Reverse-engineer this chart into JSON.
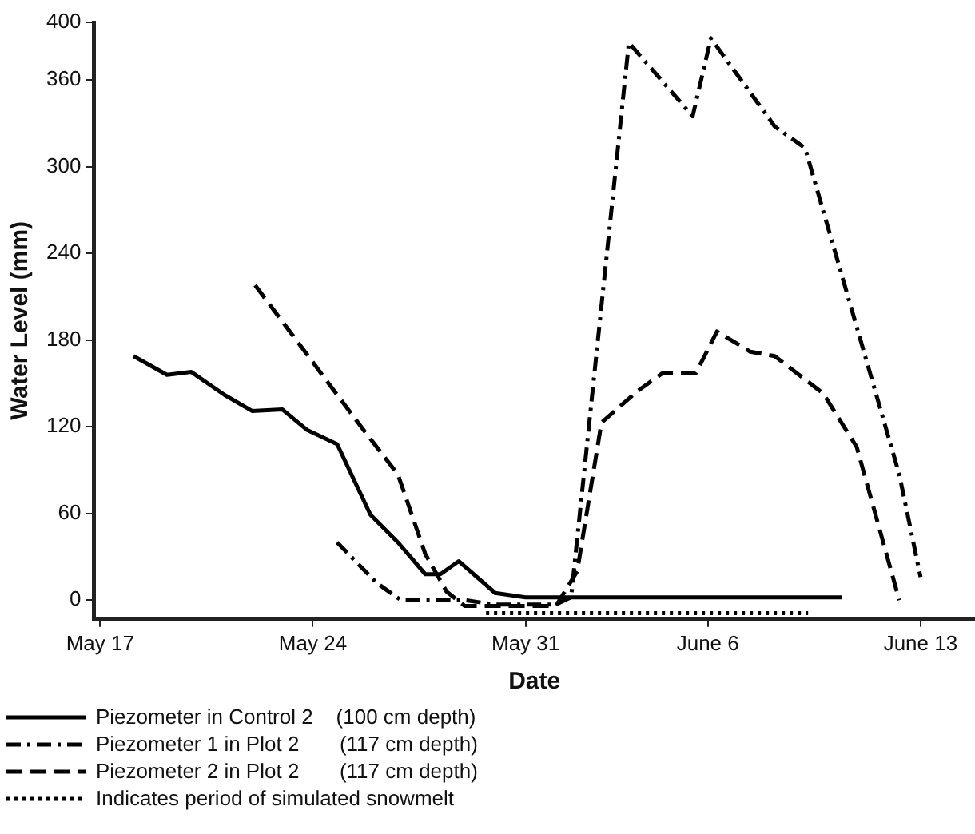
{
  "chart_data": {
    "type": "line",
    "xlabel": "Date",
    "ylabel": "Water Level (mm)",
    "xlim": [
      "--05-16T19:00",
      "--06-14T19:00"
    ],
    "ylim": [
      -13,
      400
    ],
    "xticks": [
      {
        "value": "--05-17",
        "label": "May 17"
      },
      {
        "value": "--05-24",
        "label": "May 24"
      },
      {
        "value": "--05-31",
        "label": "May 31"
      },
      {
        "value": "--06-06",
        "label": "June 6"
      },
      {
        "value": "--06-13",
        "label": "June 13"
      }
    ],
    "yticks": [
      0,
      60,
      120,
      180,
      240,
      300,
      360,
      400
    ],
    "grid": false,
    "legend": "bottom",
    "marker": "none",
    "series": [
      {
        "name": "Piezometer in Control 2    (100 cm depth)",
        "color": "#000000",
        "line_style": "solid",
        "x": [
          "--05-18T02:24",
          "--05-19T04:48",
          "--05-20",
          "--05-21T02:24",
          "--05-22",
          "--05-23",
          "--05-23T19:12",
          "--05-24T19:12",
          "--05-25T21:36",
          "--05-26T19:12",
          "--05-27T16:48",
          "--05-28T04:48",
          "--05-28T19:12",
          "--05-30",
          "--05-31",
          "--06-10T09:36"
        ],
        "values": [
          169,
          156,
          158,
          142,
          131,
          132,
          118,
          108,
          59,
          40,
          18,
          18,
          27,
          5,
          2,
          2
        ]
      },
      {
        "name": "Piezometer 1 in Plot 2       (117 cm depth)",
        "color": "#000000",
        "line_style": "dashdot",
        "x": [
          "--05-24T19:12",
          "--05-26T02:24",
          "--05-26T21:36",
          "--05-29",
          "--05-30",
          "--06-01",
          "--06-01T12:00",
          "--06-03T09:36",
          "--06-05T12:00",
          "--06-06T02:24",
          "--06-08T04:48",
          "--06-09T04:48",
          "--06-12T07:12",
          "--06-13"
        ],
        "values": [
          40,
          12,
          0,
          0,
          -3,
          -3,
          2,
          386,
          335,
          389,
          328,
          313,
          87,
          16
        ]
      },
      {
        "name": "Piezometer 2 in Plot 2       (117 cm depth)",
        "color": "#000000",
        "line_style": "dashed",
        "x": [
          "--05-22T02:24",
          "--05-25T16:48",
          "--05-26T19:12",
          "--05-27T16:48",
          "--05-28T09:36",
          "--05-29",
          "--06-01",
          "--06-01T16:48",
          "--06-02T12:00",
          "--06-03T16:48",
          "--06-04T12:00",
          "--06-05T14:24",
          "--06-06T07:12",
          "--06-07T09:36",
          "--06-08T04:48",
          "--06-09T19:12",
          "--06-10T21:36",
          "--06-12T07:12"
        ],
        "values": [
          218,
          117,
          87,
          32,
          6,
          -4,
          -4,
          20,
          123,
          145,
          157,
          157,
          186,
          172,
          169,
          143,
          106,
          0
        ]
      },
      {
        "name": "Indicates period of simulated snowmelt",
        "color": "#000000",
        "line_style": "dotted",
        "x": [
          "--05-29T16:48",
          "--06-09T07:12"
        ],
        "values": [
          -9,
          -9
        ]
      }
    ]
  }
}
